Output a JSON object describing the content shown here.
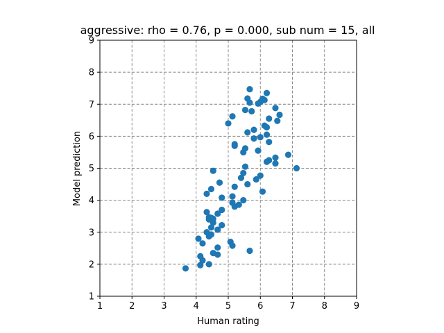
{
  "chart_data": {
    "type": "scatter",
    "title": "aggressive: rho = 0.76, p = 0.000, sub num = 15, all",
    "xlabel": "Human rating",
    "ylabel": "Model prediction",
    "xlim": [
      1,
      9
    ],
    "ylim": [
      1,
      9
    ],
    "xticks": [
      1,
      2,
      3,
      4,
      5,
      6,
      7,
      8,
      9
    ],
    "yticks": [
      1,
      2,
      3,
      4,
      5,
      6,
      7,
      8,
      9
    ],
    "grid": true,
    "marker_color": "#1f77b4",
    "points": [
      [
        3.67,
        1.87
      ],
      [
        4.13,
        1.97
      ],
      [
        4.2,
        2.12
      ],
      [
        4.13,
        2.25
      ],
      [
        4.4,
        2.0
      ],
      [
        4.53,
        2.35
      ],
      [
        4.67,
        2.3
      ],
      [
        4.67,
        2.52
      ],
      [
        4.07,
        2.8
      ],
      [
        4.2,
        2.65
      ],
      [
        4.4,
        2.87
      ],
      [
        4.33,
        3.0
      ],
      [
        4.47,
        2.93
      ],
      [
        5.07,
        2.7
      ],
      [
        5.13,
        2.58
      ],
      [
        5.67,
        2.42
      ],
      [
        4.4,
        3.4
      ],
      [
        4.47,
        3.15
      ],
      [
        4.53,
        3.3
      ],
      [
        4.67,
        3.08
      ],
      [
        4.8,
        3.22
      ],
      [
        4.47,
        3.45
      ],
      [
        4.53,
        3.42
      ],
      [
        4.67,
        3.58
      ],
      [
        4.8,
        3.7
      ],
      [
        4.33,
        3.63
      ],
      [
        4.4,
        3.47
      ],
      [
        5.13,
        3.92
      ],
      [
        5.2,
        3.8
      ],
      [
        5.33,
        3.86
      ],
      [
        5.47,
        4.0
      ],
      [
        5.13,
        4.12
      ],
      [
        4.33,
        4.2
      ],
      [
        4.47,
        4.35
      ],
      [
        4.73,
        4.55
      ],
      [
        4.8,
        4.08
      ],
      [
        5.2,
        4.42
      ],
      [
        5.4,
        4.7
      ],
      [
        5.47,
        4.85
      ],
      [
        5.53,
        5.05
      ],
      [
        5.6,
        4.5
      ],
      [
        5.87,
        4.65
      ],
      [
        6.0,
        4.77
      ],
      [
        6.07,
        4.27
      ],
      [
        4.53,
        4.92
      ],
      [
        5.2,
        5.75
      ],
      [
        5.2,
        5.7
      ],
      [
        5.47,
        5.5
      ],
      [
        5.53,
        5.62
      ],
      [
        5.93,
        5.55
      ],
      [
        6.2,
        5.2
      ],
      [
        6.27,
        5.25
      ],
      [
        6.27,
        5.82
      ],
      [
        6.47,
        5.33
      ],
      [
        6.47,
        5.15
      ],
      [
        6.87,
        5.42
      ],
      [
        7.13,
        5.0
      ],
      [
        5.0,
        6.4
      ],
      [
        5.13,
        6.62
      ],
      [
        5.6,
        6.12
      ],
      [
        5.8,
        6.2
      ],
      [
        5.8,
        5.93
      ],
      [
        6.0,
        5.97
      ],
      [
        6.13,
        6.33
      ],
      [
        6.2,
        6.05
      ],
      [
        6.2,
        6.28
      ],
      [
        6.27,
        6.55
      ],
      [
        6.53,
        6.48
      ],
      [
        6.6,
        6.67
      ],
      [
        6.47,
        6.88
      ],
      [
        5.53,
        6.82
      ],
      [
        5.73,
        6.78
      ],
      [
        5.6,
        7.18
      ],
      [
        5.67,
        7.05
      ],
      [
        5.67,
        7.47
      ],
      [
        5.93,
        7.02
      ],
      [
        6.0,
        7.07
      ],
      [
        6.07,
        7.17
      ],
      [
        6.13,
        7.13
      ],
      [
        6.2,
        7.35
      ]
    ]
  }
}
